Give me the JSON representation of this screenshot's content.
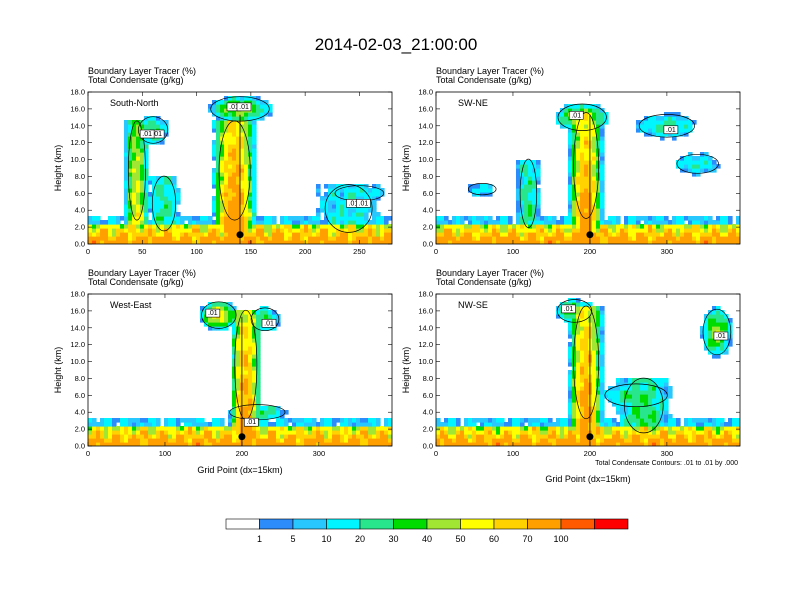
{
  "figure": {
    "title": "2014-02-03_21:00:00",
    "footnote": "Total Condensate Contours: .01 to .01 by .000"
  },
  "colors": {
    "scale": [
      "#ffffff",
      "#2b8cfa",
      "#28c8ff",
      "#00f5ff",
      "#28e68c",
      "#00dc00",
      "#a0e632",
      "#ffff00",
      "#ffd200",
      "#ffa000",
      "#ff5a00",
      "#ff0000"
    ],
    "contour": "#000000",
    "marker": "#000000",
    "frame": "#000000"
  },
  "chart_data": [
    {
      "type": "heatmap",
      "panel": "top-left",
      "label": "South-North",
      "field_labels": [
        "Boundary Layer Tracer (%)",
        "Total Condensate (g/kg)"
      ],
      "ylabel": "Height (km)",
      "xlabel": "",
      "xlim": [
        0,
        280
      ],
      "ylim": [
        0,
        18
      ],
      "xticks": [
        0,
        50,
        100,
        150,
        200,
        250
      ],
      "yticks": [
        "0.0",
        "2.0",
        "4.0",
        "6.0",
        "8.0",
        "10.0",
        "12.0",
        "14.0",
        "16.0",
        "18.0"
      ],
      "contour_labels": [
        ".01",
        ".01",
        ".01",
        ".01",
        ".01",
        ".01"
      ],
      "marker": {
        "x": 140,
        "y": 1.1
      },
      "plumes": [
        {
          "x": 45,
          "top": 14.5,
          "w": 22,
          "peak": 60
        },
        {
          "x": 135,
          "top": 14.5,
          "w": 40,
          "peak": 90
        },
        {
          "x": 240,
          "top": 7.0,
          "w": 60,
          "peak": 20
        },
        {
          "x": 70,
          "top": 8.0,
          "w": 30,
          "peak": 30
        }
      ],
      "anvils": [
        {
          "x": 140,
          "y": 16.0,
          "w": 60,
          "h": 3.2,
          "peak": 45
        },
        {
          "x": 60,
          "y": 13.5,
          "w": 30,
          "h": 3.5,
          "peak": 30
        },
        {
          "x": 250,
          "y": 6.0,
          "w": 50,
          "h": 2.0,
          "peak": 20
        }
      ]
    },
    {
      "type": "heatmap",
      "panel": "top-right",
      "label": "SW-NE",
      "field_labels": [
        "Boundary Layer Tracer (%)",
        "Total Condensate (g/kg)"
      ],
      "ylabel": "Height (km)",
      "xlabel": "",
      "xlim": [
        0,
        395
      ],
      "ylim": [
        0,
        18
      ],
      "xticks": [
        0,
        100,
        200,
        300
      ],
      "yticks": [
        "0.0",
        "2.0",
        "4.0",
        "6.0",
        "8.0",
        "10.0",
        "12.0",
        "14.0",
        "16.0",
        "18.0"
      ],
      "contour_labels": [
        ".01",
        ".01"
      ],
      "marker": {
        "x": 200,
        "y": 1.1
      },
      "plumes": [
        {
          "x": 195,
          "top": 15.5,
          "w": 45,
          "peak": 85
        },
        {
          "x": 120,
          "top": 10.0,
          "w": 30,
          "peak": 30
        }
      ],
      "anvils": [
        {
          "x": 190,
          "y": 15.0,
          "w": 70,
          "h": 3.5,
          "peak": 50
        },
        {
          "x": 300,
          "y": 14.0,
          "w": 80,
          "h": 3.0,
          "peak": 25
        },
        {
          "x": 340,
          "y": 9.5,
          "w": 60,
          "h": 2.5,
          "peak": 20
        },
        {
          "x": 60,
          "y": 6.5,
          "w": 40,
          "h": 1.5,
          "peak": 15
        }
      ]
    },
    {
      "type": "heatmap",
      "panel": "bottom-left",
      "label": "West-East",
      "field_labels": [
        "Boundary Layer Tracer (%)",
        "Total Condensate (g/kg)"
      ],
      "ylabel": "Height (km)",
      "xlabel": "Grid Point (dx=15km)",
      "xlim": [
        0,
        395
      ],
      "ylim": [
        0,
        18
      ],
      "xticks": [
        0,
        100,
        200,
        300
      ],
      "yticks": [
        "0.0",
        "2.0",
        "4.0",
        "6.0",
        "8.0",
        "10.0",
        "12.0",
        "14.0",
        "16.0",
        "18.0"
      ],
      "contour_labels": [
        ".01",
        ".01",
        ".01"
      ],
      "marker": {
        "x": 200,
        "y": 1.1
      },
      "plumes": [
        {
          "x": 205,
          "top": 16.0,
          "w": 40,
          "peak": 85
        }
      ],
      "anvils": [
        {
          "x": 170,
          "y": 15.5,
          "w": 50,
          "h": 3.5,
          "peak": 60
        },
        {
          "x": 230,
          "y": 15.0,
          "w": 40,
          "h": 3.0,
          "peak": 35
        },
        {
          "x": 220,
          "y": 4.0,
          "w": 80,
          "h": 2.0,
          "peak": 30
        }
      ]
    },
    {
      "type": "heatmap",
      "panel": "bottom-right",
      "label": "NW-SE",
      "field_labels": [
        "Boundary Layer Tracer (%)",
        "Total Condensate (g/kg)"
      ],
      "ylabel": "Height (km)",
      "xlabel": "Grid Point (dx=15km)",
      "xlim": [
        0,
        395
      ],
      "ylim": [
        0,
        18
      ],
      "xticks": [
        0,
        100,
        200,
        300
      ],
      "yticks": [
        "0.0",
        "2.0",
        "4.0",
        "6.0",
        "8.0",
        "10.0",
        "12.0",
        "14.0",
        "16.0",
        "18.0"
      ],
      "contour_labels": [
        ".01",
        ".01"
      ],
      "marker": {
        "x": 200,
        "y": 1.1
      },
      "plumes": [
        {
          "x": 195,
          "top": 16.5,
          "w": 45,
          "peak": 85
        },
        {
          "x": 270,
          "top": 8.0,
          "w": 70,
          "peak": 35
        }
      ],
      "anvils": [
        {
          "x": 180,
          "y": 16.0,
          "w": 50,
          "h": 3.0,
          "peak": 40
        },
        {
          "x": 365,
          "y": 13.5,
          "w": 40,
          "h": 6.0,
          "peak": 45
        },
        {
          "x": 260,
          "y": 6.0,
          "w": 90,
          "h": 3.0,
          "peak": 30
        }
      ]
    }
  ],
  "colorbar": {
    "labels": [
      "1",
      "5",
      "10",
      "20",
      "30",
      "40",
      "50",
      "60",
      "70",
      "100"
    ]
  }
}
